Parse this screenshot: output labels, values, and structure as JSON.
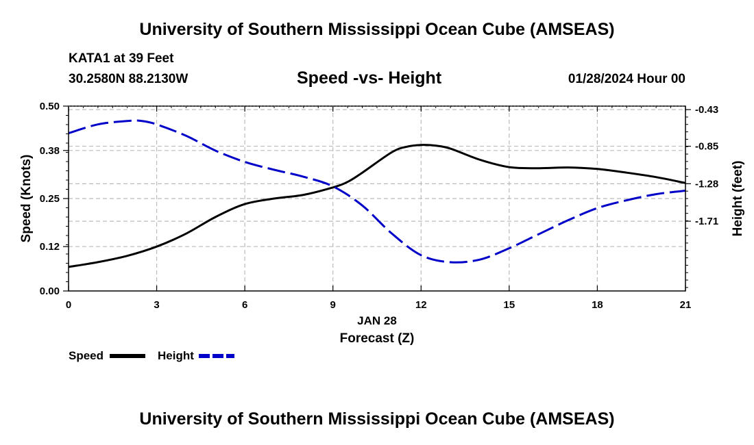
{
  "header": {
    "title": "University of Southern Mississippi Ocean Cube (AMSEAS)",
    "station": "KATA1 at 39 Feet",
    "coords": "30.2580N  88.2130W",
    "datetime": "01/28/2024 Hour 00"
  },
  "footer": {
    "title": "University of Southern Mississippi Ocean Cube (AMSEAS)"
  },
  "chart_data": {
    "type": "line",
    "title": "Speed -vs- Height",
    "xlabel": "Forecast (Z)",
    "date_label": "JAN 28",
    "x_ticks": [
      0,
      3,
      6,
      9,
      12,
      15,
      18,
      21
    ],
    "xlim": [
      0,
      21
    ],
    "y_left": {
      "label": "Speed (Knots)",
      "ticks": [
        "0.00",
        "0.12",
        "0.25",
        "0.38",
        "0.50"
      ],
      "lim": [
        0,
        0.5
      ]
    },
    "y_right": {
      "label": "Height (feet)",
      "ticks": [
        "-0.43",
        "-0.85",
        "-1.28",
        "-1.71"
      ],
      "lim": [
        -2.51,
        -0.39
      ]
    },
    "legend": [
      "Speed",
      "Height"
    ],
    "series": [
      {
        "name": "Speed",
        "axis": "left",
        "color": "#000000",
        "style": "solid",
        "x": [
          0,
          1,
          2,
          3,
          4,
          5,
          6,
          7,
          8,
          9,
          9.5,
          10,
          11,
          11.5,
          12,
          12.5,
          13,
          14,
          15,
          16,
          17,
          18,
          19,
          20,
          21
        ],
        "y": [
          0.065,
          0.078,
          0.095,
          0.12,
          0.155,
          0.2,
          0.235,
          0.25,
          0.26,
          0.28,
          0.295,
          0.32,
          0.375,
          0.39,
          0.395,
          0.393,
          0.385,
          0.355,
          0.335,
          0.332,
          0.334,
          0.33,
          0.32,
          0.308,
          0.292
        ]
      },
      {
        "name": "Height",
        "axis": "right",
        "color": "#0000c8",
        "style": "dashed",
        "x": [
          0,
          1,
          2,
          2.5,
          3,
          4,
          5,
          6,
          7,
          8,
          9,
          10,
          11,
          12,
          13,
          14,
          15,
          16,
          17,
          18,
          19,
          20,
          21
        ],
        "y": [
          -0.7,
          -0.6,
          -0.56,
          -0.56,
          -0.6,
          -0.73,
          -0.9,
          -1.03,
          -1.12,
          -1.2,
          -1.31,
          -1.53,
          -1.85,
          -2.1,
          -2.18,
          -2.15,
          -2.02,
          -1.86,
          -1.7,
          -1.56,
          -1.47,
          -1.4,
          -1.36
        ]
      }
    ]
  }
}
